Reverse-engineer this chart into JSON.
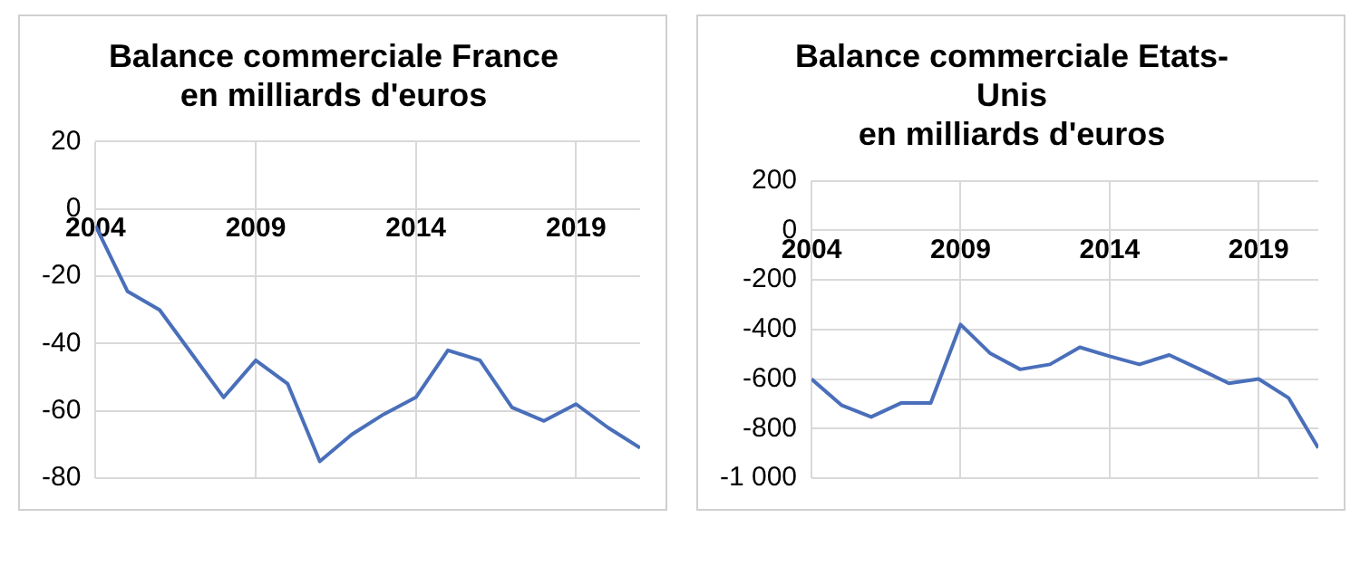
{
  "chart_data": [
    {
      "type": "line",
      "title": "Balance commerciale France\nen milliards d'euros",
      "x": [
        2004,
        2005,
        2006,
        2007,
        2008,
        2009,
        2010,
        2011,
        2012,
        2013,
        2014,
        2015,
        2016,
        2017,
        2018,
        2019,
        2020,
        2021
      ],
      "series": [
        {
          "color": "#4a6fba",
          "values": [
            -5,
            -24.5,
            -30,
            -43,
            -56,
            -45,
            -52,
            -75,
            -67,
            -61,
            -56,
            -42,
            -45,
            -59,
            -63,
            -58,
            -65,
            -71
          ]
        }
      ],
      "xlim": [
        2004,
        2021
      ],
      "xticks": [
        2004,
        2009,
        2014,
        2019
      ],
      "ylim": [
        -80,
        20
      ],
      "yticks": [
        -80,
        -60,
        -40,
        -20,
        0,
        20
      ],
      "grid": true,
      "legend": false,
      "marker": "none",
      "line_style": "solid"
    },
    {
      "type": "line",
      "title": "Balance commerciale Etats-\nUnis\nen milliards d'euros",
      "x": [
        2004,
        2005,
        2006,
        2007,
        2008,
        2009,
        2010,
        2011,
        2012,
        2013,
        2014,
        2015,
        2016,
        2017,
        2018,
        2019,
        2020,
        2021
      ],
      "series": [
        {
          "color": "#4a6fba",
          "values": [
            -600,
            -705,
            -753,
            -697,
            -697,
            -380,
            -497,
            -561,
            -541,
            -472,
            -508,
            -541,
            -503,
            -559,
            -617,
            -600,
            -676,
            -878
          ]
        }
      ],
      "xlim": [
        2004,
        2021
      ],
      "xticks": [
        2004,
        2009,
        2014,
        2019
      ],
      "ylim": [
        -1000,
        200
      ],
      "yticks": [
        {
          "value": -1000,
          "label": "-1 000"
        },
        -800,
        -600,
        -400,
        -200,
        0,
        200
      ],
      "grid": true,
      "legend": false,
      "marker": "none",
      "line_style": "solid"
    }
  ]
}
